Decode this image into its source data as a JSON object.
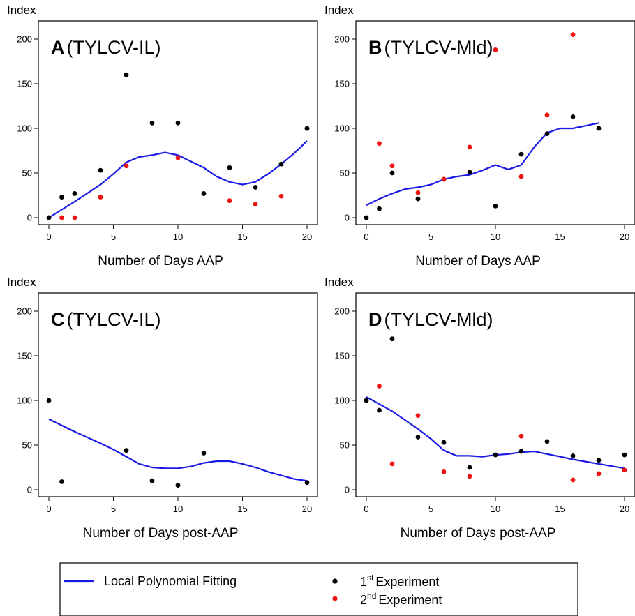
{
  "colors": {
    "fit": "#1a1ae6",
    "exp1": "#000000",
    "exp2": "#ee1111"
  },
  "legend": {
    "fit_label": "Local Polynomial Fitting",
    "exp1_sup": "st",
    "exp1_text": "Experiment",
    "exp1_num": "1",
    "exp2_sup": "nd",
    "exp2_text": "Experiment",
    "exp2_num": "2"
  },
  "chart_data": [
    {
      "type": "scatter",
      "panel_letter": "A",
      "panel_virus": "(TYLCV-IL)",
      "ylabel": "Index",
      "xlabel": "Number of Days AAP",
      "xlim": [
        0,
        20
      ],
      "ylim": [
        0,
        200
      ],
      "xticks": [
        0,
        5,
        10,
        15,
        20
      ],
      "yticks": [
        0,
        50,
        100,
        150,
        200
      ],
      "series": [
        {
          "name": "1st Experiment",
          "points": [
            [
              0,
              0
            ],
            [
              1,
              23
            ],
            [
              2,
              27
            ],
            [
              4,
              53
            ],
            [
              6,
              160
            ],
            [
              8,
              106
            ],
            [
              10,
              106
            ],
            [
              12,
              27
            ],
            [
              14,
              56
            ],
            [
              16,
              34
            ],
            [
              18,
              60
            ],
            [
              20,
              100
            ]
          ]
        },
        {
          "name": "2nd Experiment",
          "points": [
            [
              0,
              0
            ],
            [
              1,
              0
            ],
            [
              2,
              0
            ],
            [
              4,
              23
            ],
            [
              6,
              58
            ],
            [
              10,
              67
            ],
            [
              14,
              19
            ],
            [
              16,
              15
            ],
            [
              18,
              24
            ],
            [
              20,
              100
            ]
          ]
        }
      ],
      "fit": {
        "name": "Local Polynomial Fitting",
        "points": [
          [
            0,
            0
          ],
          [
            2,
            18
          ],
          [
            4,
            37
          ],
          [
            5,
            49
          ],
          [
            6,
            62
          ],
          [
            7,
            68
          ],
          [
            8,
            70
          ],
          [
            9,
            73
          ],
          [
            10,
            70
          ],
          [
            11,
            63
          ],
          [
            12,
            56
          ],
          [
            13,
            46
          ],
          [
            14,
            40
          ],
          [
            15,
            37
          ],
          [
            16,
            40
          ],
          [
            17,
            49
          ],
          [
            18,
            60
          ],
          [
            19,
            72
          ],
          [
            20,
            86
          ]
        ]
      }
    },
    {
      "type": "scatter",
      "panel_letter": "B",
      "panel_virus": "(TYLCV-Mld)",
      "ylabel": "Index",
      "xlabel": "Number of Days AAP",
      "xlim": [
        0,
        20
      ],
      "ylim": [
        0,
        200
      ],
      "xticks": [
        0,
        5,
        10,
        15,
        20
      ],
      "yticks": [
        0,
        50,
        100,
        150,
        200
      ],
      "series": [
        {
          "name": "1st Experiment",
          "points": [
            [
              0,
              0
            ],
            [
              1,
              10
            ],
            [
              2,
              50
            ],
            [
              4,
              21
            ],
            [
              8,
              51
            ],
            [
              10,
              13
            ],
            [
              12,
              71
            ],
            [
              14,
              94
            ],
            [
              16,
              113
            ],
            [
              18,
              100
            ]
          ]
        },
        {
          "name": "2nd Experiment",
          "points": [
            [
              0,
              0
            ],
            [
              1,
              83
            ],
            [
              2,
              58
            ],
            [
              4,
              28
            ],
            [
              6,
              43
            ],
            [
              8,
              79
            ],
            [
              10,
              188
            ],
            [
              12,
              46
            ],
            [
              14,
              115
            ],
            [
              16,
              205
            ],
            [
              18,
              100
            ]
          ]
        }
      ],
      "fit": {
        "name": "Local Polynomial Fitting",
        "points": [
          [
            0,
            14
          ],
          [
            1,
            21
          ],
          [
            2,
            27
          ],
          [
            3,
            32
          ],
          [
            4,
            34
          ],
          [
            5,
            37
          ],
          [
            6,
            43
          ],
          [
            7,
            46
          ],
          [
            8,
            48
          ],
          [
            9,
            53
          ],
          [
            10,
            59
          ],
          [
            11,
            54
          ],
          [
            12,
            59
          ],
          [
            13,
            79
          ],
          [
            14,
            95
          ],
          [
            15,
            100
          ],
          [
            16,
            100
          ],
          [
            17,
            103
          ],
          [
            18,
            106
          ]
        ]
      }
    },
    {
      "type": "scatter",
      "panel_letter": "C",
      "panel_virus": "(TYLCV-IL)",
      "ylabel": "Index",
      "xlabel": "Number of Days post-AAP",
      "xlim": [
        0,
        20
      ],
      "ylim": [
        0,
        200
      ],
      "xticks": [
        0,
        5,
        10,
        15,
        20
      ],
      "yticks": [
        0,
        50,
        100,
        150,
        200
      ],
      "series": [
        {
          "name": "1st Experiment",
          "points": [
            [
              0,
              100
            ],
            [
              1,
              9
            ],
            [
              6,
              44
            ],
            [
              8,
              10
            ],
            [
              10,
              5
            ],
            [
              12,
              41
            ],
            [
              20,
              8
            ]
          ]
        },
        {
          "name": "2nd Experiment",
          "points": []
        }
      ],
      "fit": {
        "name": "Local Polynomial Fitting",
        "points": [
          [
            0,
            79
          ],
          [
            2,
            65
          ],
          [
            4,
            52
          ],
          [
            5,
            45
          ],
          [
            6,
            37
          ],
          [
            7,
            29
          ],
          [
            8,
            25
          ],
          [
            9,
            24
          ],
          [
            10,
            24
          ],
          [
            11,
            26
          ],
          [
            12,
            30
          ],
          [
            13,
            32
          ],
          [
            14,
            32
          ],
          [
            15,
            29
          ],
          [
            16,
            25
          ],
          [
            17,
            20
          ],
          [
            18,
            16
          ],
          [
            19,
            12
          ],
          [
            20,
            10
          ]
        ]
      }
    },
    {
      "type": "scatter",
      "panel_letter": "D",
      "panel_virus": "(TYLCV-Mld)",
      "ylabel": "Index",
      "xlabel": "Number of Days post-AAP",
      "xlim": [
        0,
        20
      ],
      "ylim": [
        0,
        200
      ],
      "xticks": [
        0,
        5,
        10,
        15,
        20
      ],
      "yticks": [
        0,
        50,
        100,
        150,
        200
      ],
      "series": [
        {
          "name": "1st Experiment",
          "points": [
            [
              0,
              100
            ],
            [
              1,
              89
            ],
            [
              2,
              169
            ],
            [
              4,
              59
            ],
            [
              6,
              53
            ],
            [
              8,
              25
            ],
            [
              10,
              39
            ],
            [
              12,
              43
            ],
            [
              14,
              54
            ],
            [
              16,
              38
            ],
            [
              18,
              33
            ],
            [
              20,
              39
            ]
          ]
        },
        {
          "name": "2nd Experiment",
          "points": [
            [
              0,
              100
            ],
            [
              1,
              116
            ],
            [
              2,
              29
            ],
            [
              4,
              83
            ],
            [
              6,
              20
            ],
            [
              8,
              15
            ],
            [
              12,
              60
            ],
            [
              16,
              11
            ],
            [
              18,
              18
            ],
            [
              20,
              22
            ]
          ]
        }
      ],
      "fit": {
        "name": "Local Polynomial Fitting",
        "points": [
          [
            0,
            104
          ],
          [
            2,
            88
          ],
          [
            4,
            68
          ],
          [
            5,
            57
          ],
          [
            6,
            44
          ],
          [
            7,
            38
          ],
          [
            8,
            38
          ],
          [
            9,
            37
          ],
          [
            10,
            39
          ],
          [
            11,
            40
          ],
          [
            12,
            42
          ],
          [
            13,
            43
          ],
          [
            14,
            40
          ],
          [
            15,
            37
          ],
          [
            16,
            34
          ],
          [
            18,
            29
          ],
          [
            20,
            24
          ]
        ]
      }
    }
  ]
}
